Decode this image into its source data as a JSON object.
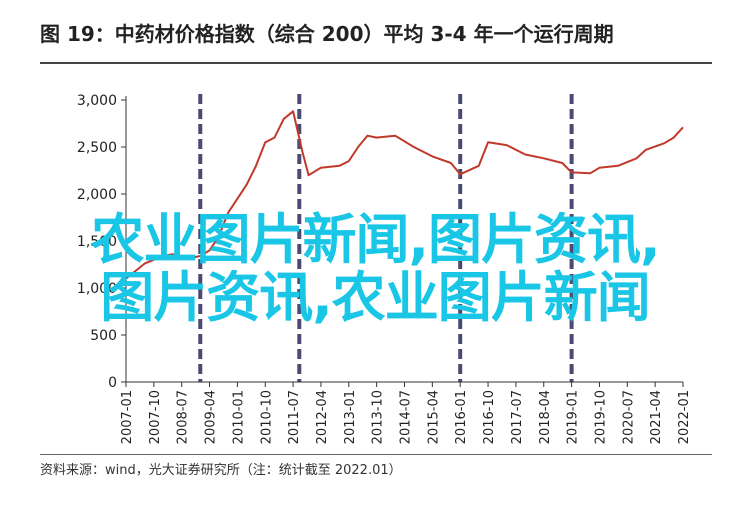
{
  "header": {
    "title": "图 19：中药材价格指数（综合 200）平均 3-4 年一个运行周期"
  },
  "footer": {
    "source": "资料来源：wind，光大证券研究所（注：统计截至 2022.01）"
  },
  "overlay": {
    "line1": "农业图片新闻,图片资讯,",
    "line2": "图片资讯,农业图片新闻"
  },
  "colors": {
    "line": "#c0392b",
    "dashed": "#4a4a72",
    "axis": "#333333",
    "overlay": "#19c6e6"
  },
  "chart_data": {
    "type": "line",
    "title": "",
    "xlabel": "",
    "ylabel": "",
    "ylim": [
      0,
      3000
    ],
    "xlim": [
      "2007-01",
      "2022-01"
    ],
    "grid": false,
    "yticks": [
      "0",
      "500",
      "1,000",
      "1,500",
      "2,000",
      "2,500",
      "3,000"
    ],
    "ytick_values": [
      0,
      500,
      1000,
      1500,
      2000,
      2500,
      3000
    ],
    "xticks": [
      "2007-01",
      "2007-10",
      "2008-07",
      "2009-04",
      "2010-01",
      "2010-10",
      "2011-07",
      "2012-04",
      "2013-01",
      "2013-10",
      "2014-07",
      "2015-04",
      "2016-01",
      "2016-10",
      "2017-07",
      "2018-04",
      "2019-01",
      "2019-10",
      "2020-07",
      "2021-04",
      "2022-01"
    ],
    "cycle_markers": [
      "2009-01",
      "2011-09",
      "2016-01",
      "2019-01"
    ],
    "series": [
      {
        "values": [
          [
            "2007-01",
            1100
          ],
          [
            "2007-04",
            1180
          ],
          [
            "2007-07",
            1260
          ],
          [
            "2007-10",
            1300
          ],
          [
            "2008-01",
            1340
          ],
          [
            "2008-04",
            1360
          ],
          [
            "2008-07",
            1330
          ],
          [
            "2008-10",
            1320
          ],
          [
            "2009-01",
            1340
          ],
          [
            "2009-04",
            1400
          ],
          [
            "2009-07",
            1550
          ],
          [
            "2009-10",
            1800
          ],
          [
            "2010-01",
            1950
          ],
          [
            "2010-04",
            2100
          ],
          [
            "2010-07",
            2300
          ],
          [
            "2010-10",
            2550
          ],
          [
            "2011-01",
            2600
          ],
          [
            "2011-04",
            2800
          ],
          [
            "2011-07",
            2880
          ],
          [
            "2011-10",
            2450
          ],
          [
            "2011-12",
            2200
          ],
          [
            "2012-04",
            2280
          ],
          [
            "2012-10",
            2300
          ],
          [
            "2013-01",
            2350
          ],
          [
            "2013-04",
            2500
          ],
          [
            "2013-07",
            2620
          ],
          [
            "2013-10",
            2600
          ],
          [
            "2014-04",
            2620
          ],
          [
            "2014-10",
            2500
          ],
          [
            "2015-04",
            2400
          ],
          [
            "2015-10",
            2330
          ],
          [
            "2016-01",
            2210
          ],
          [
            "2016-07",
            2300
          ],
          [
            "2016-10",
            2550
          ],
          [
            "2017-04",
            2520
          ],
          [
            "2017-10",
            2420
          ],
          [
            "2018-04",
            2380
          ],
          [
            "2018-10",
            2330
          ],
          [
            "2019-01",
            2230
          ],
          [
            "2019-07",
            2220
          ],
          [
            "2019-10",
            2280
          ],
          [
            "2020-04",
            2300
          ],
          [
            "2020-10",
            2380
          ],
          [
            "2021-01",
            2470
          ],
          [
            "2021-07",
            2540
          ],
          [
            "2021-10",
            2600
          ],
          [
            "2022-01",
            2710
          ]
        ]
      }
    ]
  }
}
